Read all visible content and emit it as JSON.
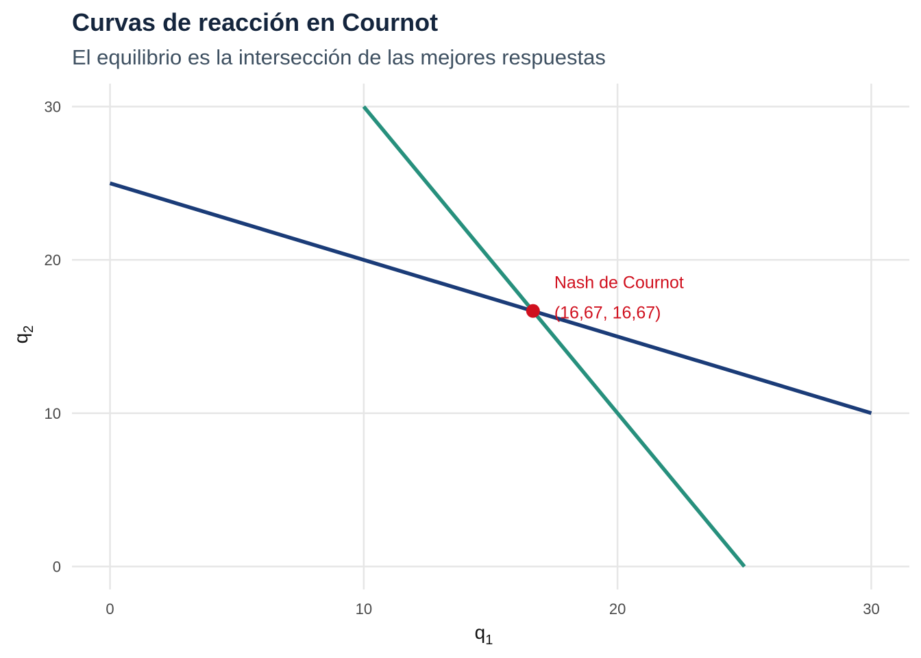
{
  "chart_data": {
    "type": "line",
    "title": "Curvas de reacción en Cournot",
    "subtitle": "El equilibrio es la intersección de las mejores respuestas",
    "xlabel": {
      "base": "q",
      "sub": "1"
    },
    "ylabel": {
      "base": "q",
      "sub": "2"
    },
    "xlim": [
      -1.5,
      31.5
    ],
    "ylim": [
      -1.5,
      31.5
    ],
    "x_ticks": [
      0,
      10,
      20,
      30
    ],
    "y_ticks": [
      0,
      10,
      20,
      30
    ],
    "grid": true,
    "series": [
      {
        "color": "#1b3c78",
        "points": [
          [
            0,
            25
          ],
          [
            30,
            10
          ]
        ]
      },
      {
        "color": "#27907d",
        "points": [
          [
            10,
            30
          ],
          [
            25,
            0
          ]
        ]
      }
    ],
    "equilibrium": {
      "x": 16.67,
      "y": 16.67,
      "color": "#d0101e"
    },
    "annotation": {
      "lines": [
        "Nash de Cournot",
        "(16,67, 16,67)"
      ],
      "color": "#d0101e"
    }
  }
}
